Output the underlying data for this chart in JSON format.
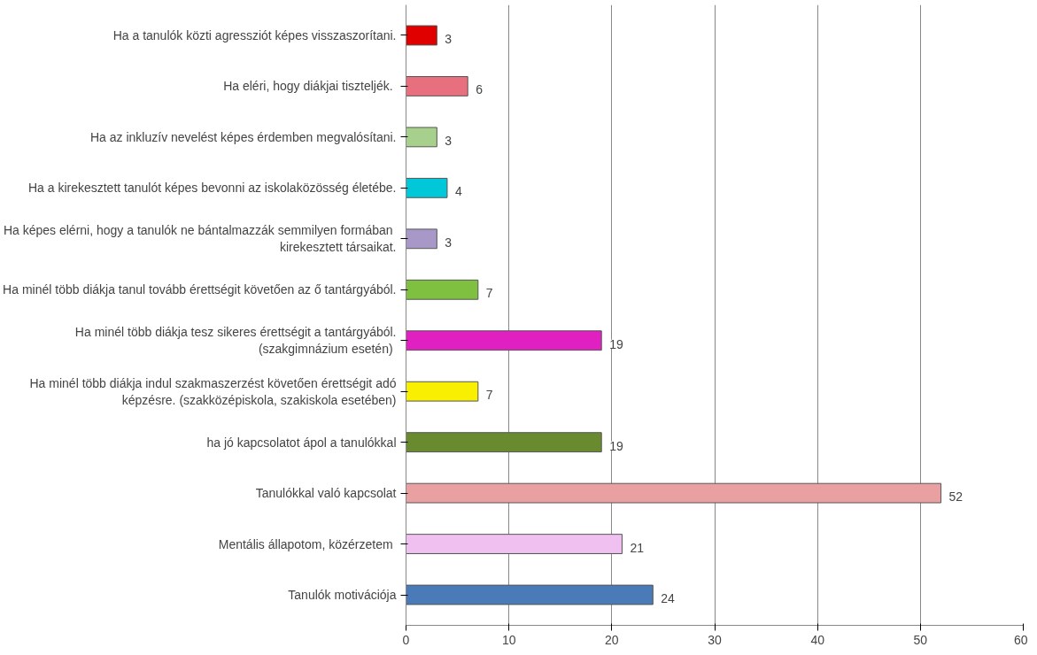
{
  "chart_data": {
    "type": "bar",
    "orientation": "horizontal",
    "categories": [
      "Ha a tanulók közti agressziót képes visszaszorítani.",
      "Ha eléri, hogy diákjai  tiszteljék.",
      "Ha az inkluzív nevelést képes érdemben megvalósítani.",
      "Ha a kirekesztett tanulót képes bevonni az iskolaközösség életébe.",
      "Ha képes elérni, hogy a tanulók ne bántalmazzák  semmilyen formában\nkirekesztett társaikat.",
      "Ha minél több diákja tanul tovább érettségit követően az ő tantárgyából.",
      "Ha minél több diákja tesz sikeres érettségit a tantárgyából.\n(szakgimnázium  esetén)",
      "Ha minél több diákja indul szakmaszerzést követően érettségit adó\nképzésre. (szakközépiskola, szakiskola esetében)",
      "ha jó kapcsolatot ápol a tanulókkal",
      "Tanulókkal való kapcsolat",
      "Mentális állapotom,  közérzetem",
      "Tanulók motivációja"
    ],
    "values": [
      3,
      6,
      3,
      4,
      3,
      7,
      19,
      7,
      19,
      52,
      21,
      24
    ],
    "colors": [
      "#e00000",
      "#e8707e",
      "#a8d08d",
      "#00c8d8",
      "#a898c8",
      "#80c040",
      "#e020c0",
      "#f8f000",
      "#6a8a30",
      "#e8a0a0",
      "#f0c0f0",
      "#4a7ab8"
    ],
    "xlim": [
      0,
      60
    ],
    "xticks": [
      0,
      10,
      20,
      30,
      40,
      50,
      60
    ],
    "grid": "x",
    "data_labels": true
  }
}
